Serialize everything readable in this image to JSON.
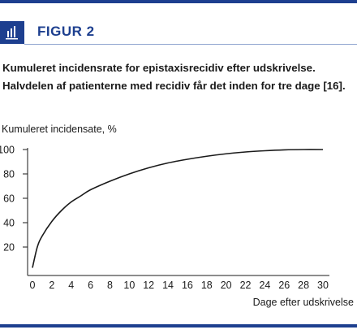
{
  "figure": {
    "label": "FIGUR 2",
    "caption": "Kumuleret incidensrate for epistaxisrecidiv efter udskrivelse. Halvdelen af patienterne med recidiv får det inden for tre dage [16]."
  },
  "colors": {
    "brand": "#1d3f8f",
    "line": "#1a1a1a"
  },
  "chart_data": {
    "type": "line",
    "title": "",
    "ylabel": "Kumuleret incidensate, %",
    "xlabel": "Dage efter udskrivelse",
    "xlim": [
      0,
      30
    ],
    "ylim": [
      0,
      100
    ],
    "x_ticks": [
      0,
      2,
      4,
      6,
      8,
      10,
      12,
      14,
      16,
      18,
      20,
      22,
      24,
      26,
      28,
      30
    ],
    "y_ticks": [
      20,
      40,
      60,
      80,
      100
    ],
    "grid": false,
    "series": [
      {
        "x": [
          0,
          0.5,
          1,
          2,
          3,
          4,
          5,
          6,
          8,
          10,
          12,
          14,
          16,
          18,
          20,
          22,
          24,
          26,
          28,
          30
        ],
        "values": [
          3,
          20,
          29,
          41,
          50,
          57,
          62,
          67,
          74,
          80,
          85,
          89,
          92,
          94.5,
          96.5,
          98,
          99,
          99.7,
          100,
          100
        ]
      }
    ]
  }
}
